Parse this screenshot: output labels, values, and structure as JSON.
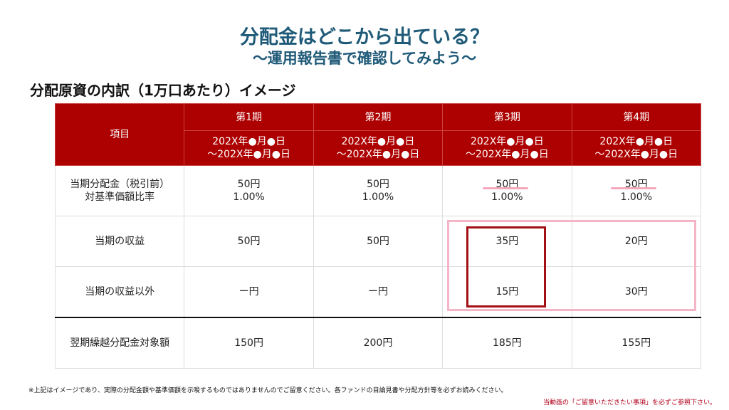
{
  "title": "分配金はどこから出ている？",
  "subtitle": "～運用報告書で確認してみよう～",
  "section_title": "分配原資の内訳（1万口あたり）イメージ",
  "table": {
    "item_header": "項目",
    "periods": [
      {
        "name": "第1期",
        "range1": "202X年●月●日",
        "range2": "～202X年●月●日"
      },
      {
        "name": "第2期",
        "range1": "202X年●月●日",
        "range2": "～202X年●月●日"
      },
      {
        "name": "第3期",
        "range1": "202X年●月●日",
        "range2": "～202X年●月●日"
      },
      {
        "name": "第4期",
        "range1": "202X年●月●日",
        "range2": "～202X年●月●日"
      }
    ],
    "rows": [
      {
        "label1": "当期分配金（税引前）",
        "label2": "対基準価額比率",
        "cells": [
          [
            "50円",
            "1.00%"
          ],
          [
            "50円",
            "1.00%"
          ],
          [
            "50円",
            "1.00%"
          ],
          [
            "50円",
            "1.00%"
          ]
        ]
      },
      {
        "label1": "当期の収益",
        "cells": [
          [
            "50円"
          ],
          [
            "50円"
          ],
          [
            "35円"
          ],
          [
            "20円"
          ]
        ]
      },
      {
        "label1": "当期の収益以外",
        "cells": [
          [
            "ー円"
          ],
          [
            "ー円"
          ],
          [
            "15円"
          ],
          [
            "30円"
          ]
        ]
      },
      {
        "label1": "翌期繰越分配金対象額",
        "cells": [
          [
            "150円"
          ],
          [
            "200円"
          ],
          [
            "185円"
          ],
          [
            "155円"
          ]
        ]
      }
    ]
  },
  "footnote": "※上記はイメージであり、実際の分配金額や基準価額を示唆するものではありませんのでご留意ください。各ファンドの目論見書や分配方針等を必ずお読みください。",
  "disclaimer": "当動画の「ご留意いただきたい事項」を必ずご参照下さい。"
}
